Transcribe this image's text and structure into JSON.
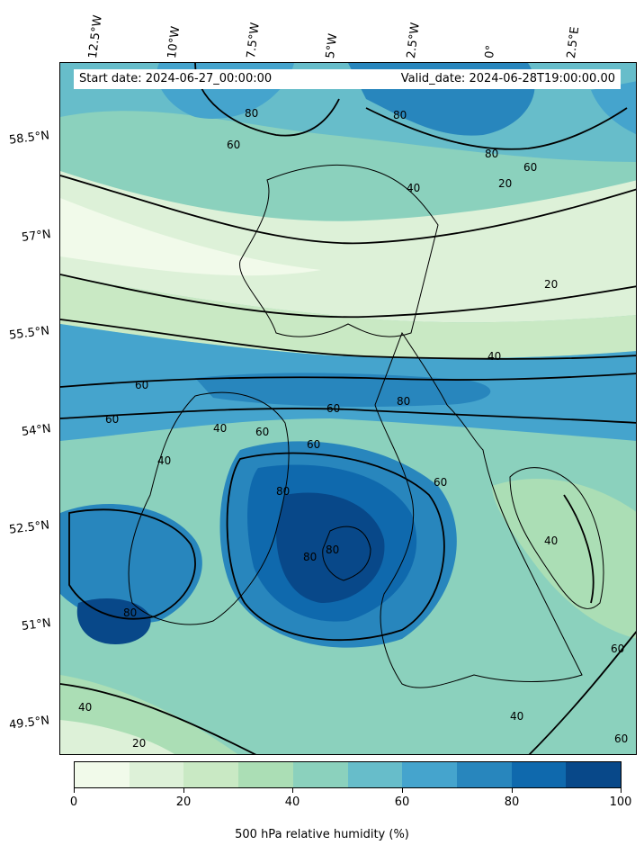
{
  "header": {
    "start_date": "Start date: 2024-06-27_00:00:00",
    "valid_date": "Valid_date: 2024-06-28T19:00:00.00"
  },
  "longitude_labels": [
    "12.5°W",
    "10°W",
    "7.5°W",
    "5°W",
    "2.5°W",
    "0°",
    "2.5°E"
  ],
  "latitude_labels": [
    "58.5°N",
    "57°N",
    "55.5°N",
    "54°N",
    "52.5°N",
    "51°N",
    "49.5°N"
  ],
  "contour_labels": [
    "80",
    "60",
    "80",
    "60",
    "80",
    "40",
    "20",
    "20",
    "40",
    "60",
    "60",
    "60",
    "80",
    "40",
    "40",
    "60",
    "60",
    "80",
    "80",
    "80",
    "40",
    "40",
    "80",
    "60",
    "40",
    "60",
    "20",
    "60"
  ],
  "colorbar": {
    "title": "500 hPa relative humidity (%)",
    "ticks": [
      "0",
      "20",
      "40",
      "60",
      "80",
      "100"
    ],
    "colors": [
      "#f1faea",
      "#ddf1d8",
      "#c9e9c4",
      "#abdeb5",
      "#8bd1bd",
      "#67bdca",
      "#45a4cd",
      "#2886bd",
      "#0f69ad",
      "#084889"
    ]
  }
}
